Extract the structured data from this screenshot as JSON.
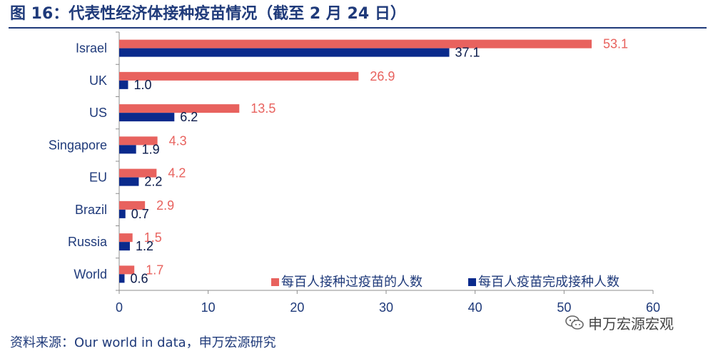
{
  "title": "图 16：代表性经济体接种疫苗情况（截至 2 月 24 日）",
  "source": "资料来源：Our world in data，申万宏源研究",
  "watermark": "申万宏源宏观",
  "chart_data": {
    "type": "bar",
    "orientation": "horizontal",
    "categories": [
      "Israel",
      "UK",
      "US",
      "Singapore",
      "EU",
      "Brazil",
      "Russia",
      "World"
    ],
    "series": [
      {
        "name": "每百人接种过疫苗的人数",
        "color": "#e8625e",
        "values": [
          53.1,
          26.9,
          13.5,
          4.3,
          4.2,
          2.9,
          1.5,
          1.7
        ]
      },
      {
        "name": "每百人疫苗完成接种人数",
        "color": "#0a2a8c",
        "values": [
          37.1,
          1.0,
          6.2,
          1.9,
          2.2,
          0.7,
          1.2,
          0.6
        ]
      }
    ],
    "xlim": [
      0,
      60
    ],
    "xticks": [
      0,
      10,
      20,
      30,
      40,
      50,
      60
    ],
    "legend_position": "bottom-right",
    "grid": false
  }
}
